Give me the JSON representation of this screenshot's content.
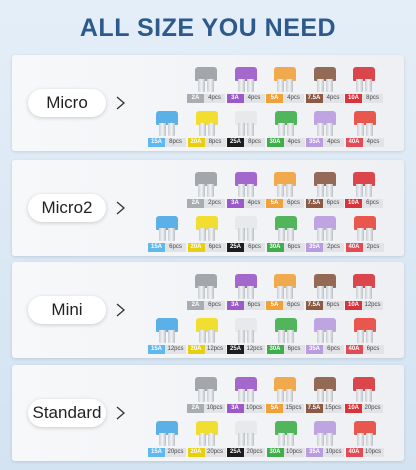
{
  "title": "ALL SIZE YOU NEED",
  "sections": [
    {
      "name": "Micro",
      "fuses": [
        {
          "rating": "2A",
          "count": "4pcs"
        },
        {
          "rating": "3A",
          "count": "4pcs"
        },
        {
          "rating": "5A",
          "count": "4pcs"
        },
        {
          "rating": "7.5A",
          "count": "4pcs"
        },
        {
          "rating": "10A",
          "count": "8pcs"
        },
        {
          "rating": "15A",
          "count": "8pcs"
        },
        {
          "rating": "20A",
          "count": "8pcs"
        },
        {
          "rating": "25A",
          "count": "8pcs"
        },
        {
          "rating": "30A",
          "count": "4pcs"
        },
        {
          "rating": "35A",
          "count": "4pcs"
        },
        {
          "rating": "40A",
          "count": "4pcs"
        }
      ]
    },
    {
      "name": "Micro2",
      "fuses": [
        {
          "rating": "2A",
          "count": "2pcs"
        },
        {
          "rating": "3A",
          "count": "4pcs"
        },
        {
          "rating": "5A",
          "count": "6pcs"
        },
        {
          "rating": "7.5A",
          "count": "6pcs"
        },
        {
          "rating": "10A",
          "count": "6pcs"
        },
        {
          "rating": "15A",
          "count": "6pcs"
        },
        {
          "rating": "20A",
          "count": "6pcs"
        },
        {
          "rating": "25A",
          "count": "6pcs"
        },
        {
          "rating": "30A",
          "count": "6pcs"
        },
        {
          "rating": "35A",
          "count": "2pcs"
        },
        {
          "rating": "40A",
          "count": "2pcs"
        }
      ]
    },
    {
      "name": "Mini",
      "fuses": [
        {
          "rating": "2A",
          "count": "6pcs"
        },
        {
          "rating": "3A",
          "count": "6pcs"
        },
        {
          "rating": "5A",
          "count": "6pcs"
        },
        {
          "rating": "7.5A",
          "count": "6pcs"
        },
        {
          "rating": "10A",
          "count": "12pcs"
        },
        {
          "rating": "15A",
          "count": "12pcs"
        },
        {
          "rating": "20A",
          "count": "12pcs"
        },
        {
          "rating": "25A",
          "count": "12pcs"
        },
        {
          "rating": "30A",
          "count": "6pcs"
        },
        {
          "rating": "35A",
          "count": "6pcs"
        },
        {
          "rating": "40A",
          "count": "6pcs"
        }
      ]
    },
    {
      "name": "Standard",
      "fuses": [
        {
          "rating": "2A",
          "count": "10pcs"
        },
        {
          "rating": "3A",
          "count": "10pcs"
        },
        {
          "rating": "5A",
          "count": "15pcs"
        },
        {
          "rating": "7.5A",
          "count": "15pcs"
        },
        {
          "rating": "10A",
          "count": "20pcs"
        },
        {
          "rating": "15A",
          "count": "20pcs"
        },
        {
          "rating": "20A",
          "count": "20pcs"
        },
        {
          "rating": "25A",
          "count": "20pcs"
        },
        {
          "rating": "30A",
          "count": "10pcs"
        },
        {
          "rating": "35A",
          "count": "10pcs"
        },
        {
          "rating": "40A",
          "count": "10pcs"
        }
      ]
    }
  ]
}
